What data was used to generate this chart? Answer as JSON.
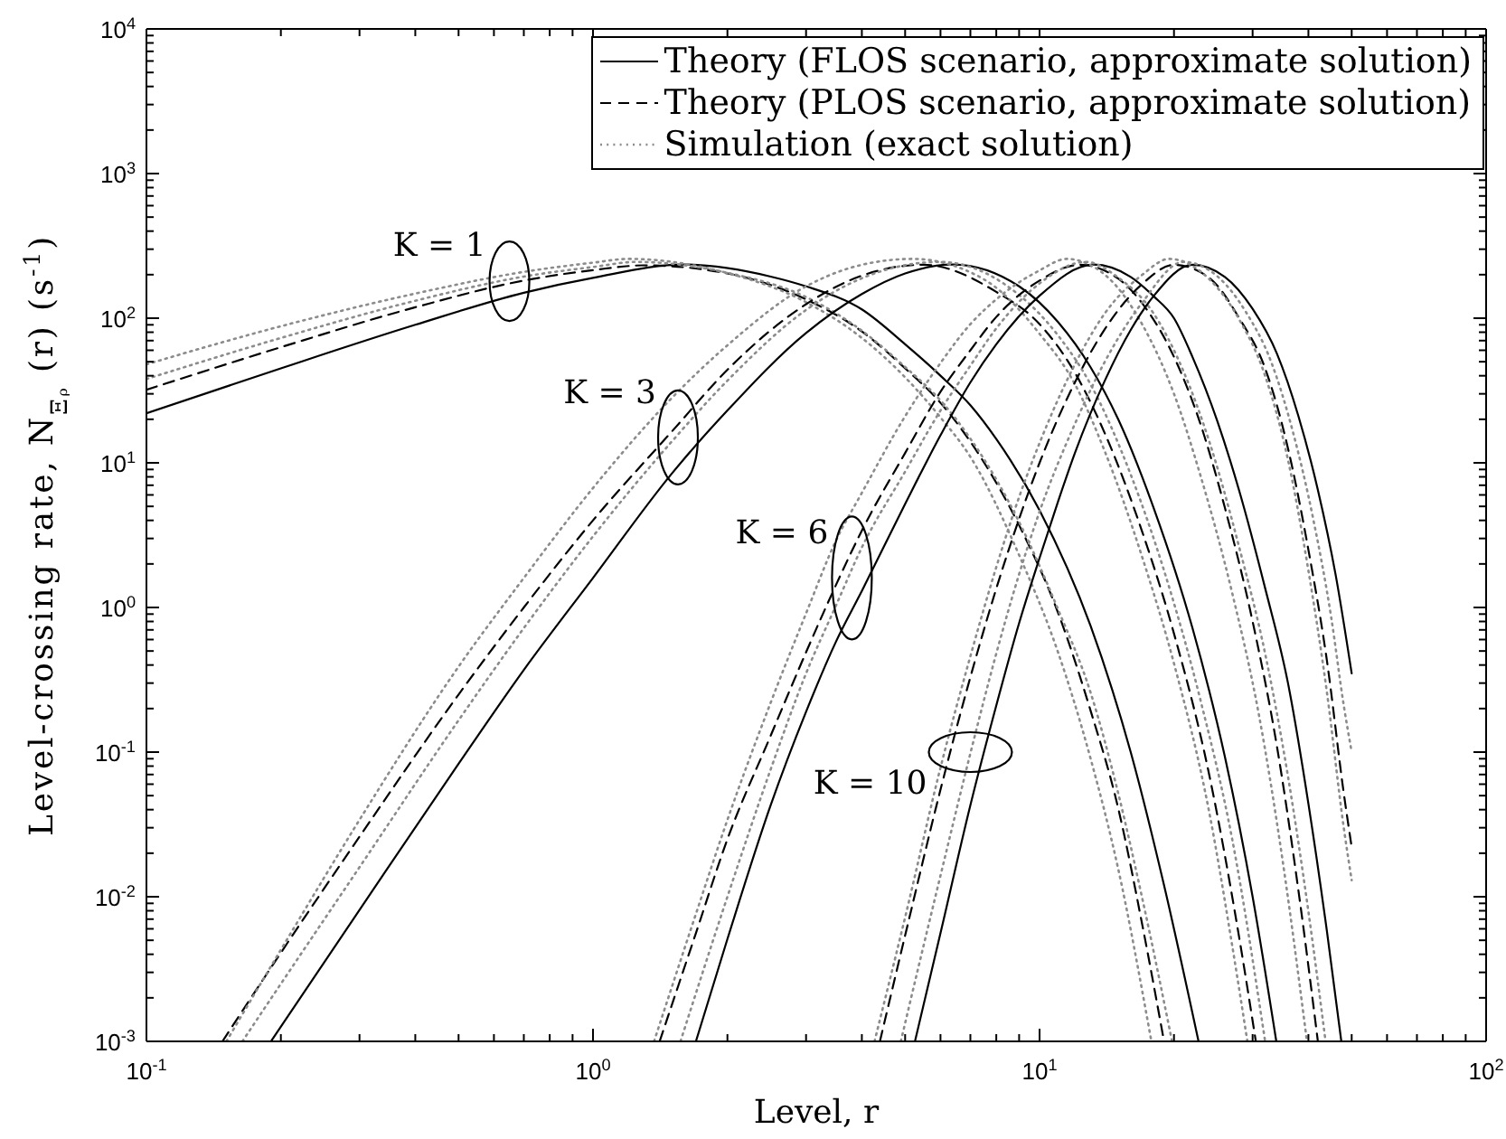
{
  "chart_data": {
    "type": "line",
    "xlabel": "Level, r",
    "ylabel": "Level-crossing rate, N$_{Ξᵨ}$ (r) (s$^{-1}$)",
    "log": "xy",
    "legend": "top right",
    "xlim": [
      0.1,
      100
    ],
    "ylim": [
      0.001,
      10000
    ],
    "xticks": [
      {
        "value": 0.1,
        "label": "10$^{-1}$"
      },
      {
        "value": 0.2,
        "label": null
      },
      {
        "value": 0.3,
        "label": null
      },
      {
        "value": 0.4,
        "label": null
      },
      {
        "value": 0.5,
        "label": null
      },
      {
        "value": 0.6,
        "label": null
      },
      {
        "value": 0.7,
        "label": null
      },
      {
        "value": 0.8,
        "label": null
      },
      {
        "value": 0.9,
        "label": null
      },
      {
        "value": 1,
        "label": "10$^{0}$"
      },
      {
        "value": 2,
        "label": null
      },
      {
        "value": 3,
        "label": null
      },
      {
        "value": 4,
        "label": null
      },
      {
        "value": 5,
        "label": null
      },
      {
        "value": 6,
        "label": null
      },
      {
        "value": 7,
        "label": null
      },
      {
        "value": 8,
        "label": null
      },
      {
        "value": 9,
        "label": null
      },
      {
        "value": 10,
        "label": "10$^{1}$"
      },
      {
        "value": 20,
        "label": null
      },
      {
        "value": 30,
        "label": null
      },
      {
        "value": 40,
        "label": null
      },
      {
        "value": 50,
        "label": null
      },
      {
        "value": 60,
        "label": null
      },
      {
        "value": 70,
        "label": null
      },
      {
        "value": 80,
        "label": null
      },
      {
        "value": 90,
        "label": null
      },
      {
        "value": 100,
        "label": "10$^{2}$"
      }
    ],
    "yticks": [
      {
        "value": 0.001,
        "label": "10$^{-3}$"
      },
      {
        "value": 0.002,
        "label": null
      },
      {
        "value": 0.003,
        "label": null
      },
      {
        "value": 0.004,
        "label": null
      },
      {
        "value": 0.005,
        "label": null
      },
      {
        "value": 0.006,
        "label": null
      },
      {
        "value": 0.007,
        "label": null
      },
      {
        "value": 0.008,
        "label": null
      },
      {
        "value": 0.009,
        "label": null
      },
      {
        "value": 0.01,
        "label": "10$^{-2}$"
      },
      {
        "value": 0.02,
        "label": null
      },
      {
        "value": 0.03,
        "label": null
      },
      {
        "value": 0.04,
        "label": null
      },
      {
        "value": 0.05,
        "label": null
      },
      {
        "value": 0.06,
        "label": null
      },
      {
        "value": 0.07,
        "label": null
      },
      {
        "value": 0.08,
        "label": null
      },
      {
        "value": 0.09,
        "label": null
      },
      {
        "value": 0.1,
        "label": "10$^{-1}$"
      },
      {
        "value": 0.2,
        "label": null
      },
      {
        "value": 0.3,
        "label": null
      },
      {
        "value": 0.4,
        "label": null
      },
      {
        "value": 0.5,
        "label": null
      },
      {
        "value": 0.6,
        "label": null
      },
      {
        "value": 0.7,
        "label": null
      },
      {
        "value": 0.8,
        "label": null
      },
      {
        "value": 0.9,
        "label": null
      },
      {
        "value": 1,
        "label": "10$^{0}$"
      },
      {
        "value": 2,
        "label": null
      },
      {
        "value": 3,
        "label": null
      },
      {
        "value": 4,
        "label": null
      },
      {
        "value": 5,
        "label": null
      },
      {
        "value": 6,
        "label": null
      },
      {
        "value": 7,
        "label": null
      },
      {
        "value": 8,
        "label": null
      },
      {
        "value": 9,
        "label": null
      },
      {
        "value": 10,
        "label": "10$^{1}$"
      },
      {
        "value": 20,
        "label": null
      },
      {
        "value": 30,
        "label": null
      },
      {
        "value": 40,
        "label": null
      },
      {
        "value": 50,
        "label": null
      },
      {
        "value": 60,
        "label": null
      },
      {
        "value": 70,
        "label": null
      },
      {
        "value": 80,
        "label": null
      },
      {
        "value": 90,
        "label": null
      },
      {
        "value": 100,
        "label": "10$^{2}$"
      },
      {
        "value": 200,
        "label": null
      },
      {
        "value": 300,
        "label": null
      },
      {
        "value": 400,
        "label": null
      },
      {
        "value": 500,
        "label": null
      },
      {
        "value": 600,
        "label": null
      },
      {
        "value": 700,
        "label": null
      },
      {
        "value": 800,
        "label": null
      },
      {
        "value": 900,
        "label": null
      },
      {
        "value": 1000,
        "label": "10$^{3}$"
      },
      {
        "value": 2000,
        "label": null
      },
      {
        "value": 3000,
        "label": null
      },
      {
        "value": 4000,
        "label": null
      },
      {
        "value": 5000,
        "label": null
      },
      {
        "value": 6000,
        "label": null
      },
      {
        "value": 7000,
        "label": null
      },
      {
        "value": 8000,
        "label": null
      },
      {
        "value": 9000,
        "label": null
      },
      {
        "value": 10000,
        "label": "10$^{4}$"
      }
    ],
    "annotations": [
      {
        "text": "K = 1",
        "x": 0.65,
        "y": 180
      },
      {
        "text": "K = 3",
        "x": 1.55,
        "y": 15
      },
      {
        "text": "K = 6",
        "x": 3.8,
        "y": 1.6
      },
      {
        "text": "K = 10",
        "x": 7,
        "y": 0.1
      }
    ],
    "series": [
      {
        "name": "Theory (FLOS scenario, approximate solution)",
        "color": "#000000",
        "line_style": "solid",
        "x": [
          0.1,
          0.2,
          0.4,
          0.7,
          1,
          1.6,
          2.5,
          3,
          4,
          5,
          6,
          7,
          8,
          10,
          13,
          16,
          19,
          22.7
        ],
        "values": [
          22,
          45,
          90,
          150,
          190,
          235,
          194,
          166,
          115,
          66,
          40,
          25,
          14.6,
          4.7,
          0.75,
          0.1,
          0.012,
          0.001
        ]
      },
      {
        "name": "Theory (PLOS scenario, approximate solution)",
        "color": "#000000",
        "line_style": "dashed",
        "x": [
          0.1,
          0.2,
          0.4,
          0.7,
          1,
          1.3,
          2,
          3,
          4,
          5,
          6,
          7,
          9,
          11,
          13,
          15,
          17,
          19
        ],
        "values": [
          32,
          63,
          119,
          182,
          215,
          232,
          204,
          135,
          81,
          45,
          26,
          14,
          3.7,
          0.92,
          0.195,
          0.041,
          0.0063,
          0.001
        ]
      },
      {
        "name": "Simulation (exact solution)",
        "color": "#8c8c8c",
        "line_style": "dotted",
        "x": [
          0.1,
          0.2,
          0.4,
          0.7,
          1,
          1.2,
          2,
          3,
          4,
          5,
          6,
          7,
          9,
          11,
          13,
          15,
          17.8
        ],
        "values": [
          48,
          88,
          148,
          209,
          242,
          257,
          205,
          129,
          73,
          39,
          20.6,
          11,
          2.3,
          0.49,
          0.091,
          0.0156,
          0.001
        ]
      },
      {
        "color": "#8c8c8c",
        "line_style": "dotted",
        "x": [
          0.1,
          0.2,
          0.4,
          0.7,
          1,
          1.25,
          2,
          3,
          4,
          5,
          6,
          7,
          9,
          11,
          13,
          15,
          17,
          19.8
        ],
        "values": [
          38,
          73,
          132,
          194,
          226,
          245,
          206,
          140,
          82,
          46,
          27,
          14.7,
          3.9,
          0.97,
          0.26,
          0.052,
          0.0096,
          0.001
        ]
      },
      {
        "color": "#000000",
        "line_style": "solid",
        "x": [
          0.19,
          0.3,
          0.5,
          0.7,
          1,
          1.5,
          2,
          3,
          4,
          5,
          6.4,
          9,
          11,
          13,
          15,
          18,
          22,
          26,
          30,
          33.9
        ],
        "values": [
          0.001,
          0.0081,
          0.083,
          0.37,
          1.6,
          8.4,
          23,
          79,
          147,
          204,
          235,
          166,
          94,
          46,
          20,
          4.9,
          0.72,
          0.093,
          0.01,
          0.001
        ]
      },
      {
        "color": "#000000",
        "line_style": "dashed",
        "x": [
          0.148,
          0.2,
          0.3,
          0.5,
          0.7,
          1,
          1.5,
          2,
          3,
          4,
          5.5,
          8,
          10,
          12,
          14,
          17,
          20,
          24,
          28,
          30.5
        ],
        "values": [
          0.001,
          0.0041,
          0.026,
          0.25,
          1.0,
          4.0,
          16.4,
          44,
          125,
          197,
          234,
          152,
          91,
          42,
          16,
          3.3,
          0.66,
          0.069,
          0.0052,
          0.001
        ]
      },
      {
        "color": "#8c8c8c",
        "line_style": "dotted",
        "x": [
          0.151,
          0.2,
          0.3,
          0.5,
          0.7,
          1,
          1.5,
          2,
          3,
          4,
          5.2,
          7.5,
          10,
          12,
          14,
          17,
          20,
          24,
          27,
          29.2
        ],
        "values": [
          0.001,
          0.0043,
          0.034,
          0.39,
          1.6,
          6.7,
          28,
          65,
          166,
          234,
          257,
          186,
          78,
          35,
          12,
          2.2,
          0.41,
          0.038,
          0.0046,
          0.001
        ]
      },
      {
        "color": "#8c8c8c",
        "line_style": "dotted",
        "x": [
          0.164,
          0.2,
          0.3,
          0.5,
          0.7,
          1,
          1.5,
          2,
          3,
          4,
          6,
          8.3,
          11,
          13,
          16,
          19,
          23,
          27,
          32
        ],
        "values": [
          0.001,
          0.0025,
          0.016,
          0.166,
          0.72,
          3.1,
          14,
          37,
          114,
          189,
          245,
          174,
          76,
          35,
          8.3,
          1.8,
          0.22,
          0.025,
          0.001
        ]
      },
      {
        "color": "#000000",
        "line_style": "solid",
        "x": [
          1.7,
          2,
          2.5,
          3,
          3.5,
          4,
          5,
          6,
          7,
          8,
          10,
          13.2,
          16,
          18,
          20,
          22,
          25,
          28,
          32,
          36,
          40,
          44,
          47.4
        ],
        "values": [
          0.001,
          0.0051,
          0.043,
          0.19,
          0.58,
          1.3,
          5.2,
          15.5,
          36,
          66,
          143,
          235,
          193,
          142,
          100,
          54,
          19.5,
          6.4,
          1.36,
          0.3,
          0.044,
          0.0058,
          0.001
        ]
      },
      {
        "color": "#000000",
        "line_style": "dashed",
        "x": [
          1.41,
          1.7,
          2,
          2.5,
          3,
          3.5,
          4,
          5,
          6,
          7,
          8,
          10,
          12.3,
          15,
          17,
          20,
          23,
          26,
          30,
          34,
          38,
          42
        ],
        "values": [
          0.001,
          0.0056,
          0.025,
          0.13,
          0.49,
          1.43,
          3.4,
          11.7,
          31,
          60,
          102,
          182,
          234,
          188,
          126,
          54,
          18,
          4.9,
          0.8,
          0.11,
          0.011,
          0.001
        ]
      },
      {
        "color": "#8c8c8c",
        "line_style": "dotted",
        "x": [
          1.37,
          1.7,
          2,
          2.5,
          3,
          3.5,
          4,
          5,
          6,
          7,
          8,
          10,
          11.5,
          14,
          17,
          20,
          23,
          27,
          31,
          35,
          39.7
        ],
        "values": [
          0.001,
          0.0076,
          0.034,
          0.22,
          0.91,
          2.9,
          6.2,
          21,
          49,
          91,
          135,
          214,
          257,
          200,
          90,
          30,
          7.9,
          1.26,
          0.18,
          0.018,
          0.001
        ]
      },
      {
        "color": "#8c8c8c",
        "line_style": "dotted",
        "x": [
          1.57,
          2,
          2.5,
          3,
          3.5,
          4,
          5,
          6,
          7,
          8,
          10,
          12.7,
          15,
          18,
          21,
          24,
          28,
          32,
          36,
          40,
          43.7
        ],
        "values": [
          0.001,
          0.01,
          0.076,
          0.35,
          1.03,
          2.6,
          8.7,
          23,
          47,
          85,
          174,
          245,
          191,
          108,
          43,
          14,
          2.6,
          0.48,
          0.068,
          0.0079,
          0.001
        ]
      },
      {
        "color": "#000000",
        "line_style": "solid",
        "x": [
          5.26,
          6,
          7,
          8,
          9,
          10,
          11,
          12,
          14,
          16,
          18,
          22,
          26,
          30,
          34,
          38,
          42,
          46,
          50
        ],
        "values": [
          0.001,
          0.0056,
          0.043,
          0.21,
          0.78,
          2.2,
          5.4,
          11.7,
          37,
          83,
          142,
          234,
          193,
          116,
          57,
          21,
          6.5,
          1.7,
          0.35
        ]
      },
      {
        "color": "#000000",
        "line_style": "dashed",
        "x": [
          4.39,
          5,
          6,
          7,
          8,
          9,
          10,
          12,
          14,
          17,
          20,
          24,
          28,
          32,
          36,
          40,
          44,
          48,
          50
        ],
        "values": [
          0.001,
          0.0054,
          0.055,
          0.33,
          1.35,
          4.1,
          10,
          36,
          84,
          173,
          234,
          190,
          100,
          45,
          12.6,
          2.5,
          0.43,
          0.052,
          0.022
        ]
      },
      {
        "color": "#8c8c8c",
        "line_style": "dotted",
        "x": [
          4.27,
          5,
          6,
          7,
          8,
          9,
          10,
          12,
          14,
          17,
          19.5,
          24,
          28,
          32,
          36,
          40,
          44,
          48,
          50
        ],
        "values": [
          0.001,
          0.0072,
          0.078,
          0.46,
          1.9,
          5.8,
          13.7,
          48,
          108,
          200,
          257,
          186,
          98,
          40,
          10.5,
          1.8,
          0.26,
          0.03,
          0.013
        ]
      },
      {
        "color": "#8c8c8c",
        "line_style": "dotted",
        "x": [
          4.89,
          5.5,
          6,
          7,
          8,
          9,
          10,
          12,
          14,
          17,
          21,
          25,
          29,
          33,
          37,
          41,
          45,
          48,
          50
        ],
        "values": [
          0.001,
          0.0046,
          0.014,
          0.098,
          0.48,
          1.7,
          4.6,
          18.6,
          50,
          129,
          245,
          195,
          110,
          50,
          16,
          4.1,
          0.85,
          0.21,
          0.1
        ]
      }
    ]
  }
}
